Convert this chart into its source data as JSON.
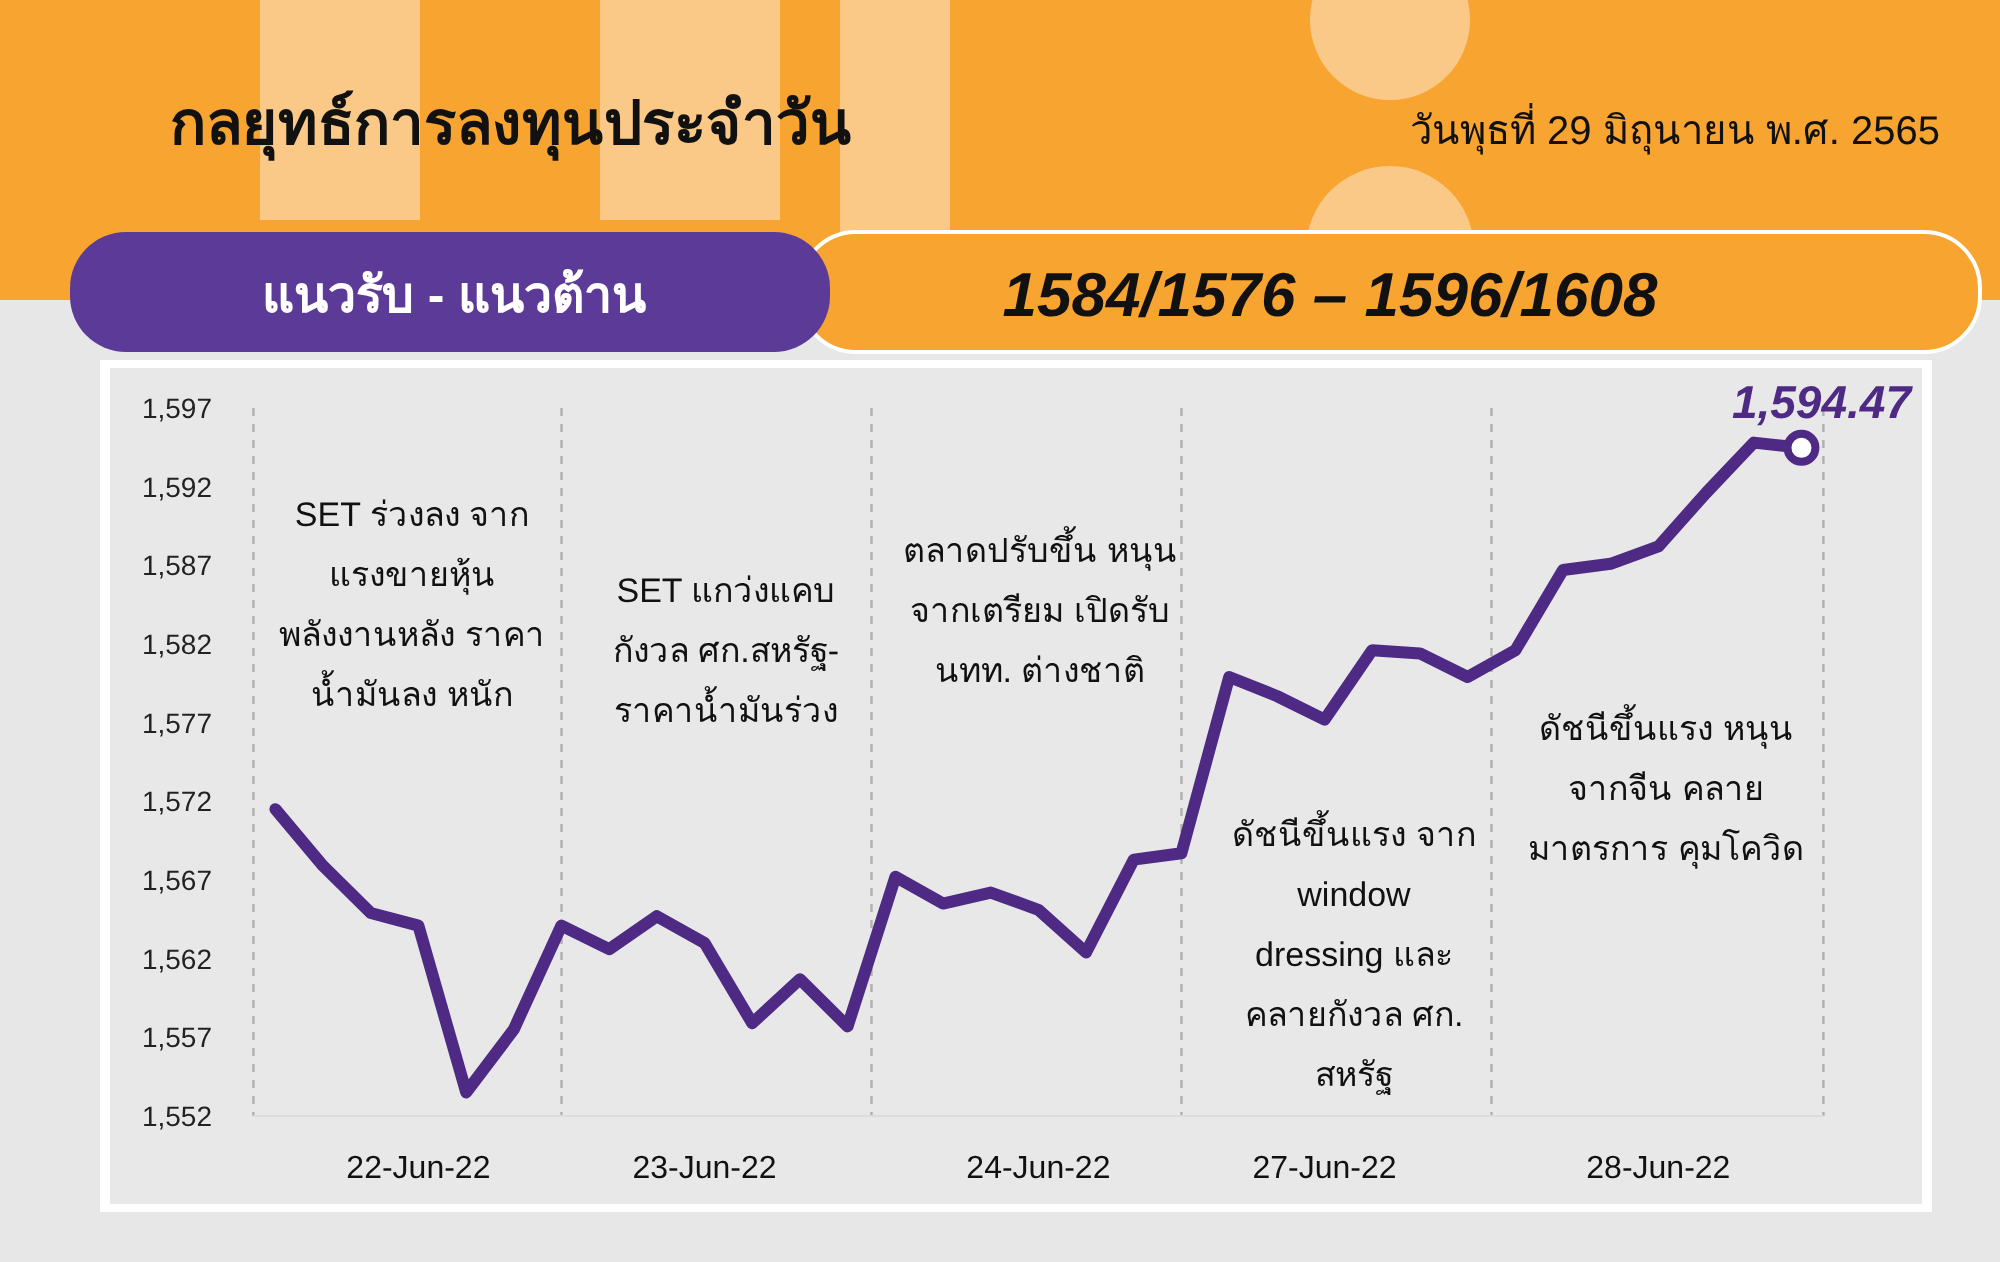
{
  "chart_data": {
    "type": "line",
    "title": "กลยุทธ์การลงทุนประจำวัน",
    "subtitle": "วันพุธที่ 29 มิถุนายน พ.ศ. 2565",
    "annotations": [
      "แนวรับ - แนวต้าน",
      "1584/1576 – 1596/1608",
      "SET ร่วงลง จากแรงขายหุ้น พลังงานหลัง ราคาน้ำมันลง หนัก",
      "SET แกว่งแคบ กังวล ศก.สหรัฐ- ราคาน้ำมันร่วง",
      "ตลาดปรับขึ้น หนุนจากเตรียม เปิดรับ นทท. ต่างชาติ",
      "ดัชนีขึ้นแรง จาก window dressing และ คลายกังวล ศก. สหรัฐ",
      "ดัชนีขึ้นแรง หนุนจากจีน คลายมาตรการ คุมโควิด"
    ],
    "categories": [
      null,
      null,
      null,
      "22-Jun-22",
      null,
      null,
      null,
      null,
      null,
      "23-Jun-22",
      null,
      null,
      null,
      null,
      null,
      null,
      "24-Jun-22",
      null,
      null,
      null,
      null,
      null,
      "27-Jun-22",
      null,
      null,
      null,
      null,
      null,
      null,
      "28-Jun-22",
      null,
      null,
      null
    ],
    "series": [
      {
        "color": "#4e2a84",
        "values": [
          1571.5,
          1567.9,
          1564.9,
          1564.1,
          1553.5,
          1557.5,
          1564.1,
          1562.6,
          1564.7,
          1563.0,
          1557.9,
          1560.7,
          1557.7,
          1567.2,
          1565.5,
          1566.2,
          1565.1,
          1562.4,
          1568.3,
          1568.7,
          1579.9,
          1578.7,
          1577.2,
          1581.6,
          1581.4,
          1579.9,
          1581.6,
          1586.7,
          1587.1,
          1588.2,
          1591.6,
          1594.8,
          1594.47
        ],
        "value_labels": [
          null,
          null,
          null,
          null,
          null,
          null,
          null,
          null,
          null,
          null,
          null,
          null,
          null,
          null,
          null,
          null,
          null,
          null,
          null,
          null,
          null,
          null,
          null,
          null,
          null,
          null,
          null,
          null,
          null,
          null,
          null,
          null,
          "1,594.47"
        ]
      }
    ],
    "ylim": [
      1552,
      1597
    ],
    "yticks": [
      {
        "value": 1552,
        "label": "1,552"
      },
      {
        "value": 1557,
        "label": "1,557"
      },
      {
        "value": 1562,
        "label": "1,562"
      },
      {
        "value": 1567,
        "label": "1,567"
      },
      {
        "value": 1572,
        "label": "1,572"
      },
      {
        "value": 1577,
        "label": "1,577"
      },
      {
        "value": 1582,
        "label": "1,582"
      },
      {
        "value": 1587,
        "label": "1,587"
      },
      {
        "value": 1592,
        "label": "1,592"
      },
      {
        "value": 1597,
        "label": "1,597"
      }
    ],
    "grid": "x",
    "marker": "none",
    "line_style": "solid"
  }
}
